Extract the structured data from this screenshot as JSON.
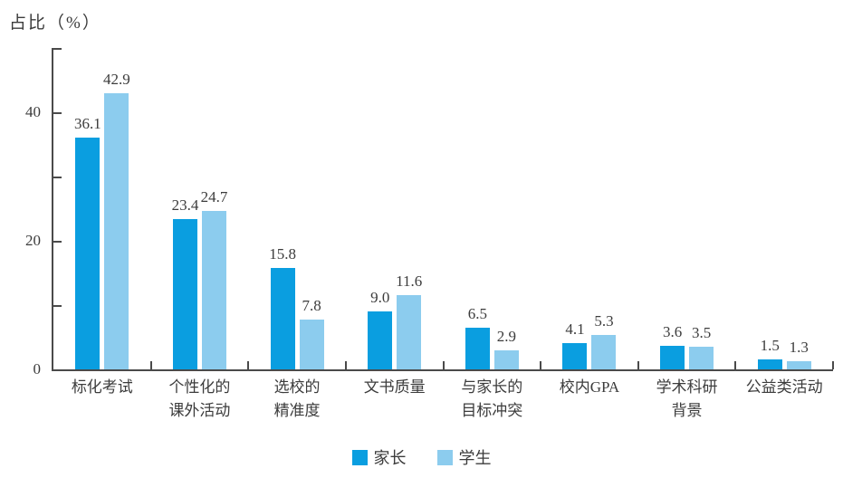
{
  "chart_data": {
    "type": "bar",
    "title": "",
    "ylabel": "占比（%）",
    "xlabel": "",
    "ylim": [
      0,
      50
    ],
    "grid": false,
    "legend_position": "bottom-center",
    "yticks": [
      {
        "value": 0,
        "label": "0"
      },
      {
        "value": 10,
        "label": ""
      },
      {
        "value": 20,
        "label": "20"
      },
      {
        "value": 30,
        "label": ""
      },
      {
        "value": 40,
        "label": "40"
      },
      {
        "value": 50,
        "label": ""
      }
    ],
    "categories": [
      {
        "lines": [
          "标化考试"
        ]
      },
      {
        "lines": [
          "个性化的",
          "课外活动"
        ]
      },
      {
        "lines": [
          "选校的",
          "精准度"
        ]
      },
      {
        "lines": [
          "文书质量"
        ]
      },
      {
        "lines": [
          "与家长的",
          "目标冲突"
        ]
      },
      {
        "lines": [
          "校内GPA"
        ]
      },
      {
        "lines": [
          "学术科研",
          "背景"
        ]
      },
      {
        "lines": [
          "公益类活动"
        ]
      }
    ],
    "series": [
      {
        "name": "家长",
        "color": "#0a9ee0",
        "values": [
          36.1,
          23.4,
          15.8,
          9.0,
          6.5,
          4.1,
          3.6,
          1.5
        ]
      },
      {
        "name": "学生",
        "color": "#8cccee",
        "values": [
          42.9,
          24.7,
          7.8,
          11.6,
          2.9,
          5.3,
          3.5,
          1.3
        ]
      }
    ],
    "colors": {
      "axis": "#4a4a4a",
      "text": "#3c3c3c",
      "background": "#ffffff"
    }
  }
}
